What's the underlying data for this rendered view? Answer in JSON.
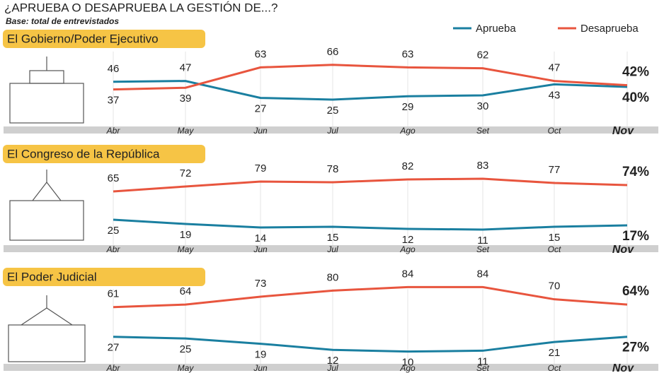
{
  "title": "¿APRUEBA O DESAPRUEBA LA GESTIÓN DE...?",
  "subtitle": "Base: total de entrevistados",
  "chart_data": [
    {
      "type": "line",
      "title": "El Gobierno/Poder Ejecutivo",
      "categories": [
        "Abr",
        "May",
        "Jun",
        "Jul",
        "Ago",
        "Set",
        "Oct",
        "Nov"
      ],
      "ylim": [
        0,
        90
      ],
      "series": [
        {
          "name": "Aprueba",
          "color": "#1a7fa0",
          "values": [
            46,
            47,
            27,
            25,
            29,
            30,
            43,
            40
          ],
          "value_labels": [
            "46",
            "47",
            "27",
            "25",
            "29",
            "30",
            "43",
            "40%"
          ]
        },
        {
          "name": "Desaprueba",
          "color": "#e8553e",
          "values": [
            37,
            39,
            63,
            66,
            63,
            62,
            47,
            42
          ],
          "value_labels": [
            "37",
            "39",
            "63",
            "66",
            "63",
            "62",
            "47",
            "42%"
          ]
        }
      ]
    },
    {
      "type": "line",
      "title": "El Congreso de la República",
      "categories": [
        "Abr",
        "May",
        "Jun",
        "Jul",
        "Ago",
        "Set",
        "Oct",
        "Nov"
      ],
      "ylim": [
        0,
        90
      ],
      "series": [
        {
          "name": "Aprueba",
          "color": "#1a7fa0",
          "values": [
            25,
            19,
            14,
            15,
            12,
            11,
            15,
            17
          ],
          "value_labels": [
            "25",
            "19",
            "14",
            "15",
            "12",
            "11",
            "15",
            "17%"
          ]
        },
        {
          "name": "Desaprueba",
          "color": "#e8553e",
          "values": [
            65,
            72,
            79,
            78,
            82,
            83,
            77,
            74
          ],
          "value_labels": [
            "65",
            "72",
            "79",
            "78",
            "82",
            "83",
            "77",
            "74%"
          ]
        }
      ]
    },
    {
      "type": "line",
      "title": "El Poder Judicial",
      "categories": [
        "Abr",
        "May",
        "Jun",
        "Jul",
        "Ago",
        "Set",
        "Oct",
        "Nov"
      ],
      "ylim": [
        0,
        90
      ],
      "series": [
        {
          "name": "Aprueba",
          "color": "#1a7fa0",
          "values": [
            27,
            25,
            19,
            12,
            10,
            11,
            21,
            27
          ],
          "value_labels": [
            "27",
            "25",
            "19",
            "12",
            "10",
            "11",
            "21",
            "27%"
          ]
        },
        {
          "name": "Desaprueba",
          "color": "#e8553e",
          "values": [
            61,
            64,
            73,
            80,
            84,
            84,
            70,
            64
          ],
          "value_labels": [
            "61",
            "64",
            "73",
            "80",
            "84",
            "84",
            "70",
            "64%"
          ]
        }
      ]
    }
  ]
}
